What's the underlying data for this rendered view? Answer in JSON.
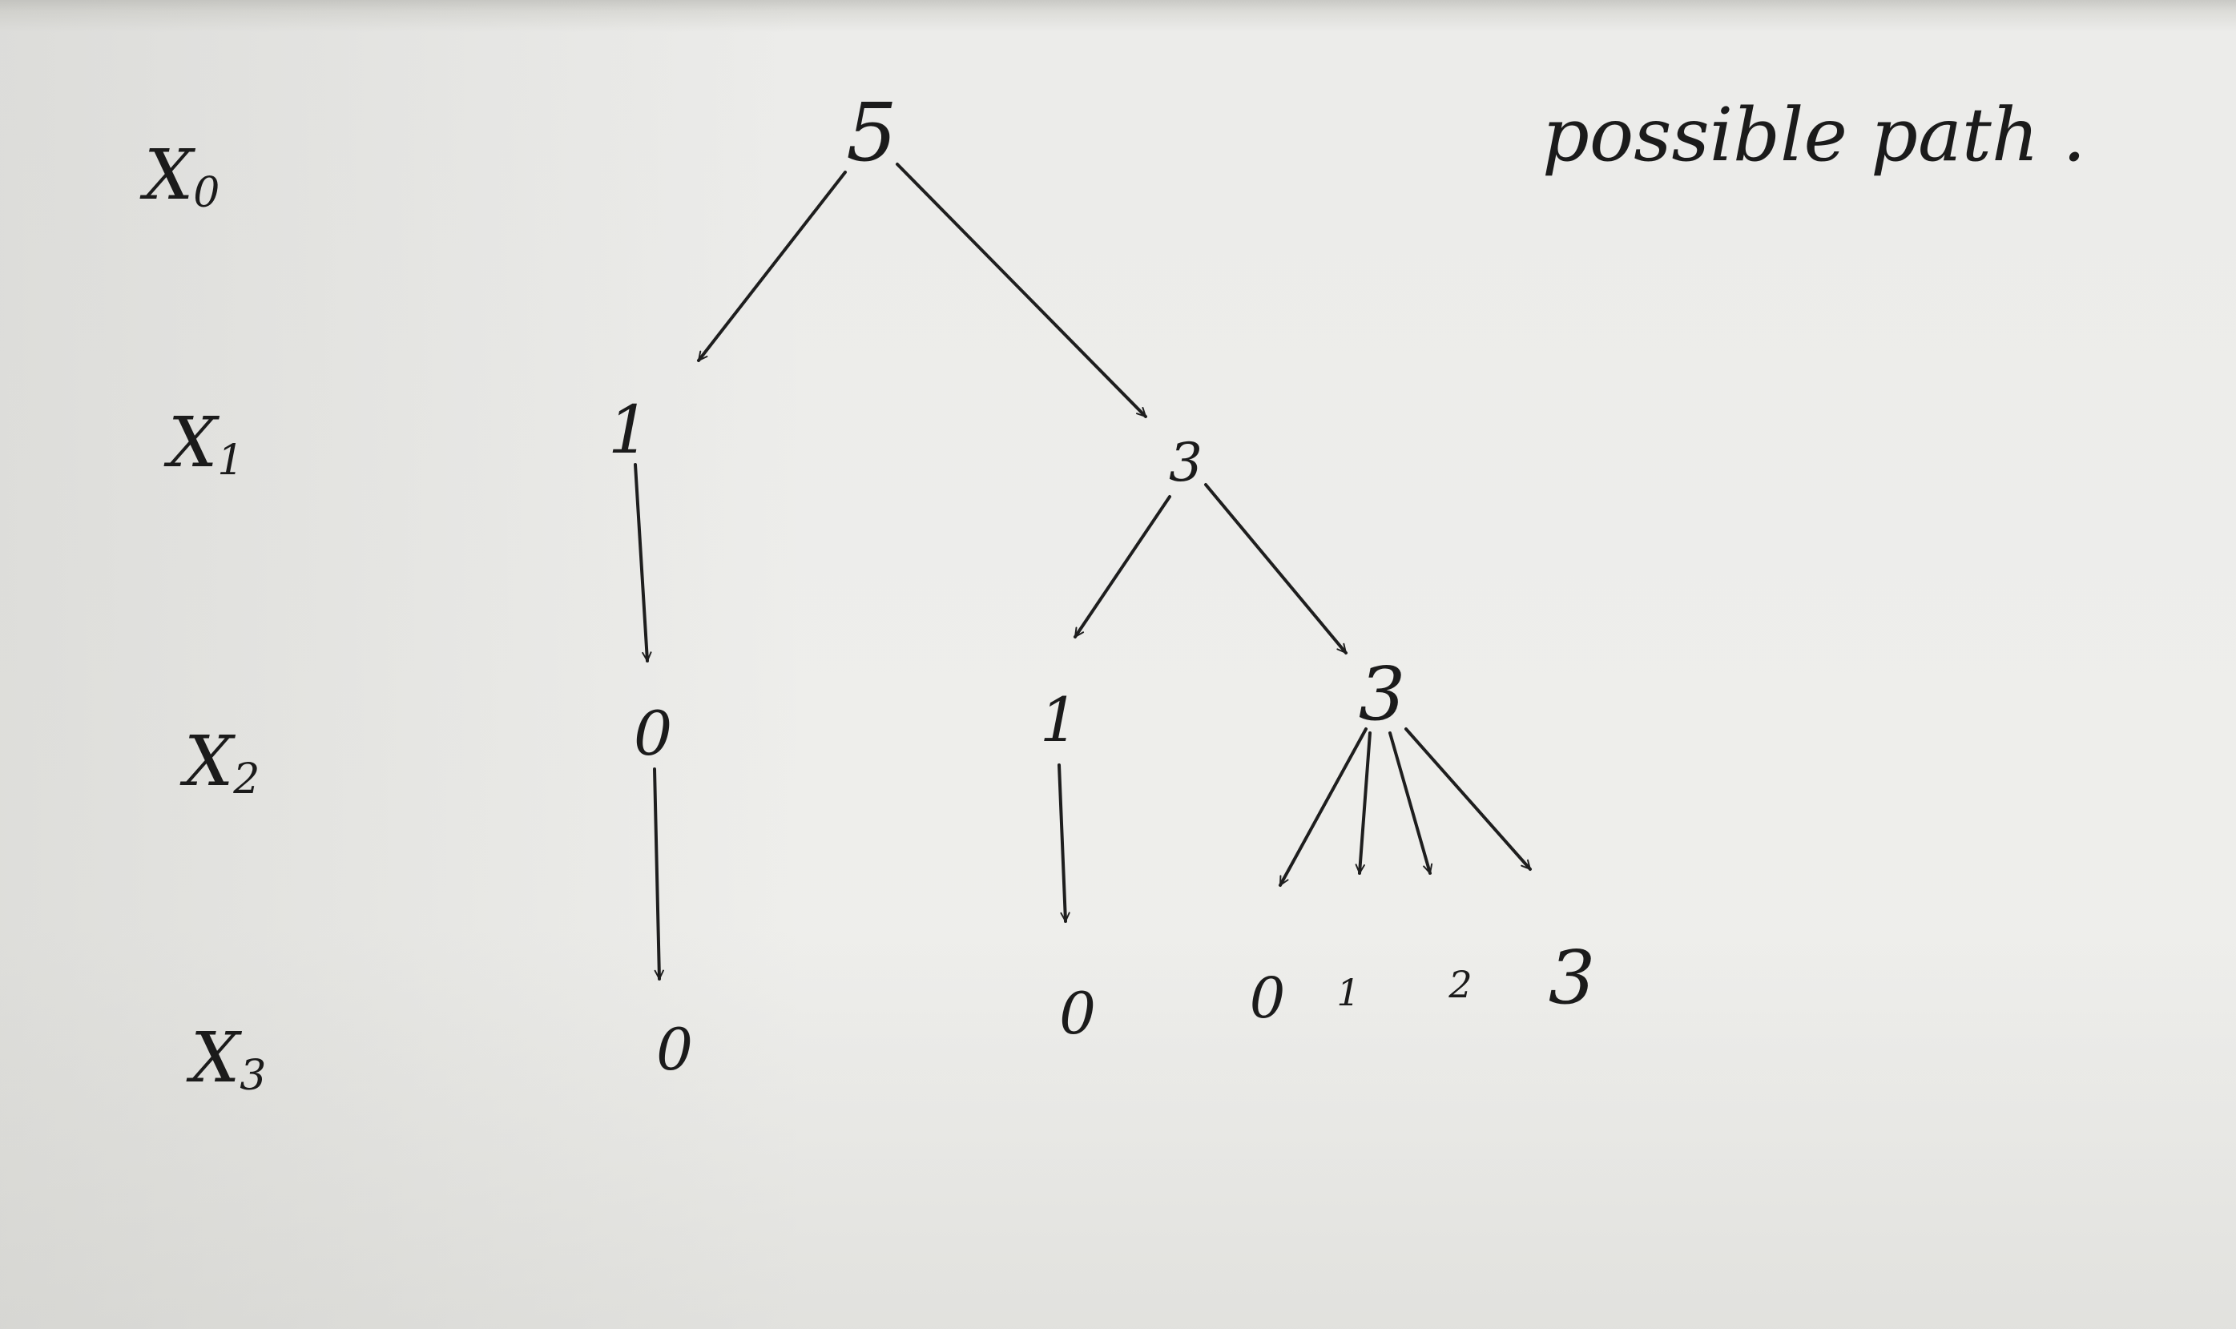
{
  "caption": "possible path .",
  "levels": [
    {
      "label": "X",
      "sub": "0"
    },
    {
      "label": "X",
      "sub": "1"
    },
    {
      "label": "X",
      "sub": "2"
    },
    {
      "label": "X",
      "sub": "3"
    }
  ],
  "nodes": [
    {
      "id": "root",
      "value": "5"
    },
    {
      "id": "l1-left",
      "value": "1"
    },
    {
      "id": "l1-right",
      "value": "3"
    },
    {
      "id": "l2-a",
      "value": "0"
    },
    {
      "id": "l2-b",
      "value": "1"
    },
    {
      "id": "l2-c",
      "value": "3"
    },
    {
      "id": "l3-a",
      "value": "0"
    },
    {
      "id": "l3-b",
      "value": "0"
    },
    {
      "id": "l3-c",
      "value": "0"
    },
    {
      "id": "l3-d",
      "value": "1"
    },
    {
      "id": "l3-e",
      "value": "2"
    },
    {
      "id": "l3-f",
      "value": "3"
    }
  ],
  "edges": [
    [
      "root",
      "l1-left"
    ],
    [
      "root",
      "l1-right"
    ],
    [
      "l1-left",
      "l2-a"
    ],
    [
      "l1-right",
      "l2-b"
    ],
    [
      "l1-right",
      "l2-c"
    ],
    [
      "l2-a",
      "l3-a"
    ],
    [
      "l2-b",
      "l3-b"
    ],
    [
      "l2-c",
      "l3-c"
    ],
    [
      "l2-c",
      "l3-d"
    ],
    [
      "l2-c",
      "l3-e"
    ],
    [
      "l2-c",
      "l3-f"
    ]
  ]
}
